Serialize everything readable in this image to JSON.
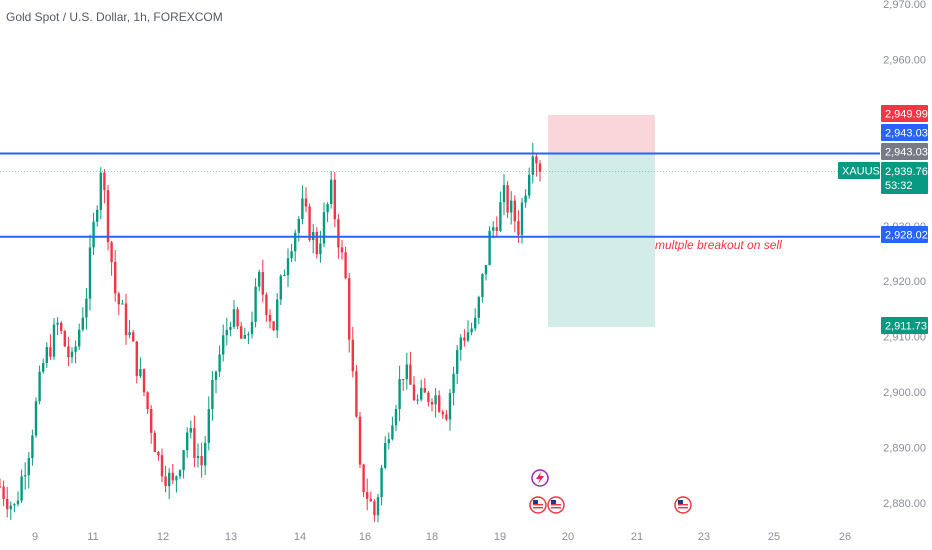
{
  "header": {
    "title": "Gold Spot / U.S. Dollar, 1h, FOREXCOM"
  },
  "colors": {
    "up": "#089981",
    "down": "#f23645",
    "level": "#2962ff",
    "stop_zone": "#f9d6d9",
    "target_zone": "#d3ece7",
    "axis_text": "#8a8e99",
    "stop_tag": "#f23645",
    "entry_tag": "#2962ff",
    "ghost_tag": "#787b86",
    "price_tag": "#089981",
    "annotation": "#f23645"
  },
  "price_labels": {
    "stop": "2,949.99",
    "entry": "2,943.03",
    "level_upper": "2,943.03",
    "symbol": "XAUUSD",
    "last": "2,939.76",
    "countdown": "53:32",
    "level_lower": "2,928.02",
    "target": "2,911.73"
  },
  "annotation": {
    "text": "multple breakout on sell"
  },
  "events": {
    "icons": [
      "lightning-icon",
      "us-flag-icon",
      "us-flag-icon",
      "us-flag-icon"
    ]
  },
  "chart_data": {
    "type": "candlestick",
    "title": "Gold Spot / U.S. Dollar, 1h, FOREXCOM",
    "x_ticks": [
      "9",
      "11",
      "12",
      "13",
      "14",
      "16",
      "18",
      "19",
      "20",
      "21",
      "23",
      "25",
      "26"
    ],
    "y_ticks": [
      "2,880.00",
      "2,890.00",
      "2,900.00",
      "2,910.00",
      "2,920.00",
      "2,930.00",
      "2,960.00",
      "2,970.00"
    ],
    "y_tick_values": [
      2880,
      2890,
      2900,
      2910,
      2920,
      2930,
      2960,
      2970
    ],
    "ylim": [
      2877,
      2971
    ],
    "horizontal_levels": [
      2943.03,
      2928.02
    ],
    "position": {
      "type": "short",
      "entry": 2943.03,
      "stop": 2949.99,
      "target": 2911.73
    },
    "close_path": [
      [
        0,
        2883
      ],
      [
        4,
        2879
      ],
      [
        8,
        2890
      ],
      [
        12,
        2905
      ],
      [
        16,
        2912
      ],
      [
        20,
        2905
      ],
      [
        24,
        2918
      ],
      [
        28,
        2941
      ],
      [
        32,
        2918
      ],
      [
        36,
        2910
      ],
      [
        40,
        2900
      ],
      [
        44,
        2888
      ],
      [
        48,
        2883
      ],
      [
        52,
        2893
      ],
      [
        56,
        2887
      ],
      [
        60,
        2904
      ],
      [
        64,
        2914
      ],
      [
        68,
        2908
      ],
      [
        72,
        2920
      ],
      [
        76,
        2912
      ],
      [
        80,
        2926
      ],
      [
        84,
        2933
      ],
      [
        88,
        2926
      ],
      [
        92,
        2936
      ],
      [
        96,
        2920
      ],
      [
        100,
        2885
      ],
      [
        104,
        2878
      ],
      [
        108,
        2894
      ],
      [
        112,
        2904
      ],
      [
        116,
        2898
      ],
      [
        120,
        2900
      ],
      [
        124,
        2897
      ],
      [
        128,
        2910
      ],
      [
        132,
        2912
      ],
      [
        136,
        2928
      ],
      [
        140,
        2935
      ],
      [
        144,
        2930
      ],
      [
        148,
        2945
      ],
      [
        150,
        2940
      ]
    ],
    "last_price": 2939.76
  }
}
